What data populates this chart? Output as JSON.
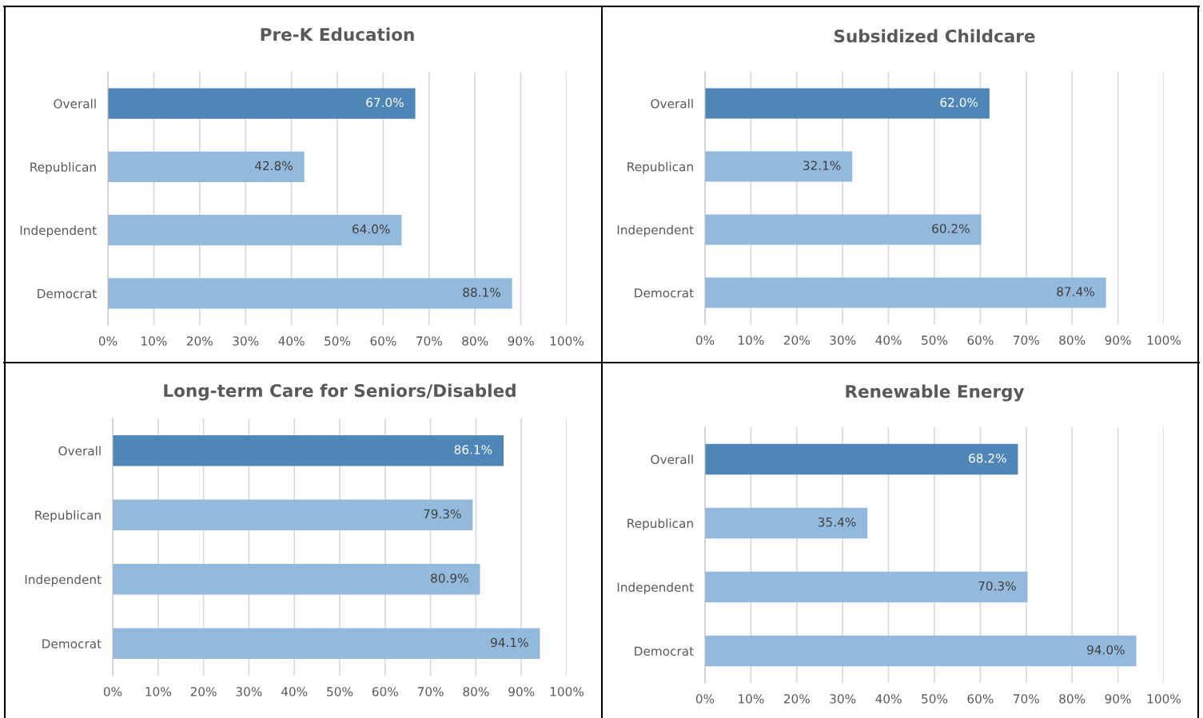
{
  "chart_data": [
    {
      "type": "bar",
      "orientation": "horizontal",
      "title": "Pre-K Education",
      "categories": [
        "Overall",
        "Republican",
        "Independent",
        "Democrat"
      ],
      "values": [
        67.0,
        42.8,
        64.0,
        88.1
      ],
      "value_labels": [
        "67.0%",
        "42.8%",
        "64.0%",
        "88.1%"
      ],
      "colors": [
        "#4f86b8",
        "#93badd",
        "#93badd",
        "#93badd"
      ],
      "xlim": [
        0,
        100
      ],
      "xticks": [
        {
          "value": 0,
          "label": "0%"
        },
        {
          "value": 10,
          "label": "10%"
        },
        {
          "value": 20,
          "label": "20%"
        },
        {
          "value": 30,
          "label": "30%"
        },
        {
          "value": 40,
          "label": "40%"
        },
        {
          "value": 50,
          "label": "50%"
        },
        {
          "value": 60,
          "label": "60%"
        },
        {
          "value": 70,
          "label": "70%"
        },
        {
          "value": 80,
          "label": "80%"
        },
        {
          "value": 90,
          "label": "90%"
        },
        {
          "value": 100,
          "label": "100%"
        }
      ],
      "grid": "x",
      "legend": false
    },
    {
      "type": "bar",
      "orientation": "horizontal",
      "title": "Subsidized Childcare",
      "categories": [
        "Overall",
        "Republican",
        "Independent",
        "Democrat"
      ],
      "values": [
        62.0,
        32.1,
        60.2,
        87.4
      ],
      "value_labels": [
        "62.0%",
        "32.1%",
        "60.2%",
        "87.4%"
      ],
      "colors": [
        "#4f86b8",
        "#93badd",
        "#93badd",
        "#93badd"
      ],
      "xlim": [
        0,
        100
      ],
      "xticks": [
        {
          "value": 0,
          "label": "0%"
        },
        {
          "value": 10,
          "label": "10%"
        },
        {
          "value": 20,
          "label": "20%"
        },
        {
          "value": 30,
          "label": "30%"
        },
        {
          "value": 40,
          "label": "40%"
        },
        {
          "value": 50,
          "label": "50%"
        },
        {
          "value": 60,
          "label": "60%"
        },
        {
          "value": 70,
          "label": "70%"
        },
        {
          "value": 80,
          "label": "80%"
        },
        {
          "value": 90,
          "label": "90%"
        },
        {
          "value": 100,
          "label": "100%"
        }
      ],
      "grid": "x",
      "legend": false
    },
    {
      "type": "bar",
      "orientation": "horizontal",
      "title": "Long-term Care for Seniors/Disabled",
      "categories": [
        "Overall",
        "Republican",
        "Independent",
        "Democrat"
      ],
      "values": [
        86.1,
        79.3,
        80.9,
        94.1
      ],
      "value_labels": [
        "86.1%",
        "79.3%",
        "80.9%",
        "94.1%"
      ],
      "colors": [
        "#4f86b8",
        "#93badd",
        "#93badd",
        "#93badd"
      ],
      "xlim": [
        0,
        100
      ],
      "xticks": [
        {
          "value": 0,
          "label": "0%"
        },
        {
          "value": 10,
          "label": "10%"
        },
        {
          "value": 20,
          "label": "20%"
        },
        {
          "value": 30,
          "label": "30%"
        },
        {
          "value": 40,
          "label": "40%"
        },
        {
          "value": 50,
          "label": "50%"
        },
        {
          "value": 60,
          "label": "60%"
        },
        {
          "value": 70,
          "label": "70%"
        },
        {
          "value": 80,
          "label": "80%"
        },
        {
          "value": 90,
          "label": "90%"
        },
        {
          "value": 100,
          "label": "100%"
        }
      ],
      "grid": "x",
      "legend": false
    },
    {
      "type": "bar",
      "orientation": "horizontal",
      "title": "Renewable Energy",
      "categories": [
        "Overall",
        "Republican",
        "Independent",
        "Democrat"
      ],
      "values": [
        68.2,
        35.4,
        70.3,
        94.0
      ],
      "value_labels": [
        "68.2%",
        "35.4%",
        "70.3%",
        "94.0%"
      ],
      "colors": [
        "#4f86b8",
        "#93badd",
        "#93badd",
        "#93badd"
      ],
      "xlim": [
        0,
        100
      ],
      "xticks": [
        {
          "value": 0,
          "label": "0%"
        },
        {
          "value": 10,
          "label": "10%"
        },
        {
          "value": 20,
          "label": "20%"
        },
        {
          "value": 30,
          "label": "30%"
        },
        {
          "value": 40,
          "label": "40%"
        },
        {
          "value": 50,
          "label": "50%"
        },
        {
          "value": 60,
          "label": "60%"
        },
        {
          "value": 70,
          "label": "70%"
        },
        {
          "value": 80,
          "label": "80%"
        },
        {
          "value": 90,
          "label": "90%"
        },
        {
          "value": 100,
          "label": "100%"
        }
      ],
      "grid": "x",
      "legend": false
    }
  ]
}
